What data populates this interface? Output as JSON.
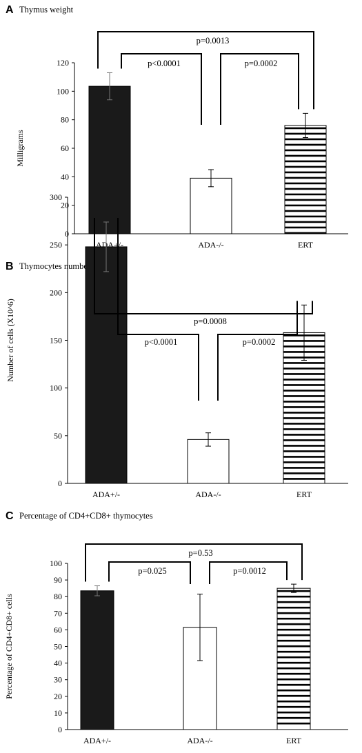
{
  "chart_data": [
    {
      "type": "bar",
      "panel": "A",
      "title": "Thymus weight",
      "ylabel": "Milligrams",
      "categories": [
        "ADA+/-",
        "ADA-/-",
        "ERT"
      ],
      "values": [
        103.5,
        39,
        76
      ],
      "errors": [
        9.5,
        6,
        8.5
      ],
      "ylim": [
        0,
        120
      ],
      "yticks": [
        0,
        20,
        40,
        60,
        80,
        100,
        120
      ],
      "bar_styles": [
        "solid",
        "open",
        "striped"
      ],
      "comparisons": [
        {
          "from": 0,
          "to": 1,
          "label": "p<0.0001"
        },
        {
          "from": 1,
          "to": 2,
          "label": "p=0.0002"
        },
        {
          "from": 0,
          "to": 2,
          "label": "p=0.0013"
        }
      ]
    },
    {
      "type": "bar",
      "panel": "B",
      "title": "Thymocytes numbers",
      "ylabel": "Number of cells (X10^6)",
      "categories": [
        "ADA+/-",
        "ADA-/-",
        "ERT"
      ],
      "values": [
        248,
        46,
        158
      ],
      "errors": [
        26,
        7,
        29
      ],
      "ylim": [
        0,
        300
      ],
      "yticks": [
        0,
        50,
        100,
        150,
        200,
        250,
        300
      ],
      "bar_styles": [
        "solid",
        "open",
        "striped"
      ],
      "comparisons": [
        {
          "from": 0,
          "to": 1,
          "label": "p<0.0001"
        },
        {
          "from": 1,
          "to": 2,
          "label": "p=0.0002"
        },
        {
          "from": 0,
          "to": 2,
          "label": "p=0.0008"
        }
      ]
    },
    {
      "type": "bar",
      "panel": "C",
      "title": "Percentage of CD4+CD8+ thymocytes",
      "ylabel": "Percentage of CD4+CD8+ cells",
      "categories": [
        "ADA+/-",
        "ADA-/-",
        "ERT"
      ],
      "values": [
        83.5,
        61.5,
        85
      ],
      "errors": [
        3,
        20,
        2.5
      ],
      "ylim": [
        0,
        100
      ],
      "yticks": [
        0,
        10,
        20,
        30,
        40,
        50,
        60,
        70,
        80,
        90,
        100
      ],
      "bar_styles": [
        "solid",
        "open",
        "striped"
      ],
      "comparisons": [
        {
          "from": 0,
          "to": 1,
          "label": "p=0.025"
        },
        {
          "from": 1,
          "to": 2,
          "label": "p=0.0012"
        },
        {
          "from": 0,
          "to": 2,
          "label": "p=0.53"
        }
      ]
    }
  ]
}
